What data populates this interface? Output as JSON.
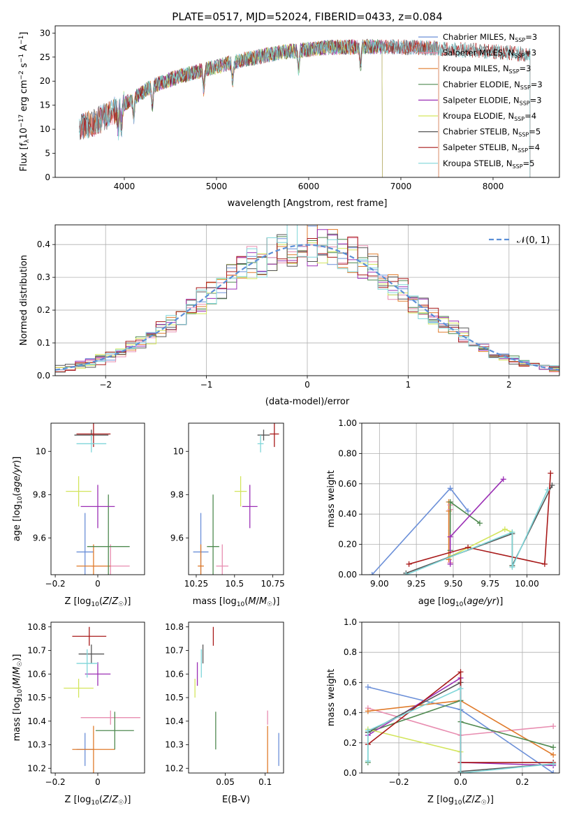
{
  "figure": {
    "title": "PLATE=0517, MJD=52024, FIBERID=0433, z=0.084"
  },
  "colors": {
    "Chabrier MILES": "#6b8fd8",
    "Salpeter MILES": "#e88db0",
    "Kroupa MILES": "#e07b2b",
    "Chabrier ELODIE": "#4f8a50",
    "Salpeter ELODIE": "#9b2fb5",
    "Kroupa ELODIE": "#d3e55c",
    "Chabrier STELIB": "#555555",
    "Salpeter STELIB": "#a81a1a",
    "Kroupa STELIB": "#7fd6d9"
  },
  "chart_data": [
    {
      "id": "spectrum",
      "type": "line",
      "title": "PLATE=0517, MJD=52024, FIBERID=0433, z=0.084",
      "xlabel": "wavelength [Angstrom, rest frame]",
      "ylabel": "Flux [f_λ 10^-17 erg cm^-2 s^-1 A^-1]",
      "xlim": [
        3250,
        8720
      ],
      "ylim": [
        0,
        31.5
      ],
      "xticks": [
        4000,
        5000,
        6000,
        7000,
        8000
      ],
      "yticks": [
        0,
        5,
        10,
        15,
        20,
        25,
        30
      ],
      "grid": false,
      "legend_position": "right",
      "data_range": [
        3510,
        8400
      ],
      "data_continuum": [
        [
          3510,
          10.5
        ],
        [
          3700,
          11.5
        ],
        [
          3900,
          14
        ],
        [
          4100,
          16.5
        ],
        [
          4300,
          19
        ],
        [
          4600,
          21
        ],
        [
          5000,
          23
        ],
        [
          5300,
          24.5
        ],
        [
          5700,
          26
        ],
        [
          6200,
          27
        ],
        [
          6700,
          27.2
        ],
        [
          7200,
          27
        ],
        [
          7700,
          26.5
        ],
        [
          8100,
          26
        ],
        [
          8400,
          25.5
        ]
      ],
      "legend": [
        {
          "label": "Chabrier MILES, N_SSP=3",
          "base": "Chabrier MILES, N",
          "sub": "SSP",
          "tail": "=3"
        },
        {
          "label": "Salpeter MILES, N_SSP=3",
          "base": "Salpeter MILES, N",
          "sub": "SSP",
          "tail": "=3"
        },
        {
          "label": "Kroupa MILES, N_SSP=3",
          "base": "Kroupa MILES, N",
          "sub": "SSP",
          "tail": "=3"
        },
        {
          "label": "Chabrier ELODIE, N_SSP=3",
          "base": "Chabrier ELODIE, N",
          "sub": "SSP",
          "tail": "=3"
        },
        {
          "label": "Salpeter ELODIE, N_SSP=3",
          "base": "Salpeter ELODIE, N",
          "sub": "SSP",
          "tail": "=3"
        },
        {
          "label": "Kroupa ELODIE, N_SSP=4",
          "base": "Kroupa ELODIE, N",
          "sub": "SSP",
          "tail": "=4"
        },
        {
          "label": "Chabrier STELIB, N_SSP=5",
          "base": "Chabrier STELIB, N",
          "sub": "SSP",
          "tail": "=5"
        },
        {
          "label": "Salpeter STELIB, N_SSP=4",
          "base": "Salpeter STELIB, N",
          "sub": "SSP",
          "tail": "=4"
        },
        {
          "label": "Kroupa STELIB, N_SSP=5",
          "base": "Kroupa STELIB, N",
          "sub": "SSP",
          "tail": "=5"
        }
      ],
      "model_ranges": {
        "Chabrier MILES": [
          3540,
          7410
        ],
        "Salpeter MILES": [
          3540,
          7410
        ],
        "Kroupa MILES": [
          3540,
          7410
        ],
        "Chabrier ELODIE": [
          3910,
          6800
        ],
        "Salpeter ELODIE": [
          3910,
          6800
        ],
        "Kroupa ELODIE": [
          3910,
          6800
        ],
        "Chabrier STELIB": [
          3510,
          8400
        ],
        "Salpeter STELIB": [
          3510,
          8400
        ],
        "Kroupa STELIB": [
          3510,
          8400
        ]
      }
    },
    {
      "id": "residuals",
      "type": "line",
      "xlabel": "(data-model)/error",
      "ylabel": "Normed distribution",
      "xlim": [
        -2.5,
        2.5
      ],
      "ylim": [
        0,
        0.46
      ],
      "xticks": [
        -2,
        -1,
        0,
        1,
        2
      ],
      "yticks": [
        0.0,
        0.1,
        0.2,
        0.3,
        0.4
      ],
      "grid": true,
      "legend_position": "top-right",
      "legend": [
        {
          "label": "𝒩(0, 1)",
          "color": "#5b8fd6",
          "style": "dashed"
        }
      ],
      "bin_edges": [
        -2.5,
        2.5,
        50
      ],
      "curve": "normal pdf, mean 0, sd 1"
    },
    {
      "id": "age_vs_Z",
      "type": "scatter",
      "xlabel": "Z [log10(Z/Z☉)]",
      "ylabel": "age [log10(age/yr)]",
      "xlim": [
        -0.22,
        0.22
      ],
      "ylim": [
        9.43,
        10.13
      ],
      "xticks": [
        -0.2,
        0.0
      ],
      "yticks": [
        9.6,
        9.8,
        10.0
      ],
      "grid": false,
      "points": [
        {
          "model": "Chabrier MILES",
          "x": -0.06,
          "xerr": 0.04,
          "y": 9.535,
          "yerr": 0.18
        },
        {
          "model": "Salpeter MILES",
          "x": 0.06,
          "xerr": 0.09,
          "y": 9.47,
          "yerr": 0.1
        },
        {
          "model": "Kroupa MILES",
          "x": -0.02,
          "xerr": 0.08,
          "y": 9.47,
          "yerr": 0.1
        },
        {
          "model": "Chabrier ELODIE",
          "x": 0.05,
          "xerr": 0.1,
          "y": 9.56,
          "yerr": 0.24
        },
        {
          "model": "Salpeter ELODIE",
          "x": 0.0,
          "xerr": 0.08,
          "y": 9.745,
          "yerr": 0.1
        },
        {
          "model": "Kroupa ELODIE",
          "x": -0.09,
          "xerr": 0.06,
          "y": 9.815,
          "yerr": 0.07
        },
        {
          "model": "Chabrier STELIB",
          "x": -0.03,
          "xerr": 0.08,
          "y": 10.075,
          "yerr": 0.025
        },
        {
          "model": "Salpeter STELIB",
          "x": -0.02,
          "xerr": 0.08,
          "y": 10.08,
          "yerr": 0.06
        },
        {
          "model": "Kroupa STELIB",
          "x": -0.03,
          "xerr": 0.07,
          "y": 10.035,
          "yerr": 0.04
        }
      ]
    },
    {
      "id": "age_vs_mass",
      "type": "scatter",
      "xlabel": "mass [log10(M/M☉)]",
      "ylabel": "",
      "xlim": [
        10.2,
        10.82
      ],
      "ylim": [
        9.43,
        10.13
      ],
      "xticks": [
        10.25,
        10.5,
        10.75
      ],
      "yticks": [
        9.6,
        9.8,
        10.0
      ],
      "grid": false,
      "points": [
        {
          "model": "Chabrier MILES",
          "x": 10.28,
          "xerr": 0.05,
          "y": 9.535,
          "yerr": 0.18
        },
        {
          "model": "Salpeter MILES",
          "x": 10.42,
          "xerr": 0.04,
          "y": 9.47,
          "yerr": 0.1
        },
        {
          "model": "Kroupa MILES",
          "x": 10.28,
          "xerr": 0.02,
          "y": 9.47,
          "yerr": 0.1
        },
        {
          "model": "Chabrier ELODIE",
          "x": 10.36,
          "xerr": 0.04,
          "y": 9.56,
          "yerr": 0.24
        },
        {
          "model": "Salpeter ELODIE",
          "x": 10.6,
          "xerr": 0.05,
          "y": 9.745,
          "yerr": 0.1
        },
        {
          "model": "Kroupa ELODIE",
          "x": 10.54,
          "xerr": 0.04,
          "y": 9.815,
          "yerr": 0.07
        },
        {
          "model": "Chabrier STELIB",
          "x": 10.69,
          "xerr": 0.04,
          "y": 10.075,
          "yerr": 0.025
        },
        {
          "model": "Salpeter STELIB",
          "x": 10.76,
          "xerr": 0.03,
          "y": 10.08,
          "yerr": 0.06
        },
        {
          "model": "Kroupa STELIB",
          "x": 10.67,
          "xerr": 0.02,
          "y": 10.035,
          "yerr": 0.04
        }
      ]
    },
    {
      "id": "weight_vs_age",
      "type": "line",
      "xlabel": "age [log10(age/yr)]",
      "ylabel": "mass weight",
      "xlim": [
        8.88,
        10.22
      ],
      "ylim": [
        0,
        1.0
      ],
      "xticks": [
        9.0,
        9.25,
        9.5,
        9.75,
        10.0
      ],
      "yticks": [
        0.0,
        0.2,
        0.4,
        0.6,
        0.8,
        1.0
      ],
      "grid": true,
      "series": [
        {
          "model": "Chabrier MILES",
          "x": [
            8.95,
            9.48,
            9.6
          ],
          "y": [
            0.0,
            0.57,
            0.42
          ]
        },
        {
          "model": "Kroupa MILES",
          "x": [
            9.47,
            9.47,
            9.47
          ],
          "y": [
            0.1,
            0.48,
            0.42
          ]
        },
        {
          "model": "Salpeter MILES",
          "x": [
            9.48,
            9.48,
            9.48
          ],
          "y": [
            0.08,
            0.46,
            0.43
          ]
        },
        {
          "model": "Chabrier ELODIE",
          "x": [
            9.48,
            9.48,
            9.68
          ],
          "y": [
            0.16,
            0.48,
            0.34
          ]
        },
        {
          "model": "Salpeter ELODIE",
          "x": [
            9.48,
            9.48,
            9.84
          ],
          "y": [
            0.07,
            0.25,
            0.63
          ]
        },
        {
          "model": "Kroupa ELODIE",
          "x": [
            9.48,
            9.85,
            9.9,
            9.9
          ],
          "y": [
            0.12,
            0.3,
            0.28,
            0.06
          ]
        },
        {
          "model": "Chabrier STELIB",
          "x": [
            9.18,
            9.9,
            9.9,
            10.17
          ],
          "y": [
            0.01,
            0.27,
            0.06,
            0.59
          ]
        },
        {
          "model": "Salpeter STELIB",
          "x": [
            9.2,
            9.6,
            10.12,
            10.16
          ],
          "y": [
            0.07,
            0.18,
            0.07,
            0.67
          ]
        },
        {
          "model": "Kroupa STELIB",
          "x": [
            9.18,
            9.9,
            9.9,
            10.14
          ],
          "y": [
            0.0,
            0.28,
            0.05,
            0.56
          ]
        }
      ]
    },
    {
      "id": "mass_vs_Z",
      "type": "scatter",
      "xlabel": "Z [log10(Z/Z☉)]",
      "ylabel": "mass [log10(M/M☉)]",
      "xlim": [
        -0.22,
        0.22
      ],
      "ylim": [
        10.18,
        10.82
      ],
      "xticks": [
        -0.2,
        0.0
      ],
      "yticks": [
        10.2,
        10.3,
        10.4,
        10.5,
        10.6,
        10.7,
        10.8
      ],
      "grid": false,
      "points": [
        {
          "model": "Chabrier MILES",
          "x": -0.06,
          "xerr": 0.04,
          "y": 10.28,
          "yerr": 0.07
        },
        {
          "model": "Salpeter MILES",
          "x": 0.06,
          "xerr": 0.14,
          "y": 10.415,
          "yerr": 0.03
        },
        {
          "model": "Kroupa MILES",
          "x": -0.02,
          "xerr": 0.1,
          "y": 10.28,
          "yerr": 0.1
        },
        {
          "model": "Chabrier ELODIE",
          "x": 0.08,
          "xerr": 0.09,
          "y": 10.36,
          "yerr": 0.08
        },
        {
          "model": "Salpeter ELODIE",
          "x": 0.0,
          "xerr": 0.06,
          "y": 10.6,
          "yerr": 0.05
        },
        {
          "model": "Kroupa ELODIE",
          "x": -0.09,
          "xerr": 0.07,
          "y": 10.54,
          "yerr": 0.04
        },
        {
          "model": "Chabrier STELIB",
          "x": -0.03,
          "xerr": 0.06,
          "y": 10.685,
          "yerr": 0.04
        },
        {
          "model": "Salpeter STELIB",
          "x": -0.04,
          "xerr": 0.08,
          "y": 10.76,
          "yerr": 0.04
        },
        {
          "model": "Kroupa STELIB",
          "x": -0.05,
          "xerr": 0.05,
          "y": 10.645,
          "yerr": 0.06
        }
      ]
    },
    {
      "id": "mass_vs_ebv",
      "type": "scatter",
      "xlabel": "E(B-V)",
      "ylabel": "",
      "xlim": [
        0.004,
        0.123
      ],
      "ylim": [
        10.18,
        10.82
      ],
      "xticks": [
        0.05,
        0.1
      ],
      "yticks": [
        10.2,
        10.3,
        10.4,
        10.5,
        10.6,
        10.7,
        10.8
      ],
      "grid": false,
      "points": [
        {
          "model": "Chabrier MILES",
          "x": 0.117,
          "y": 10.28,
          "yerr": 0.07
        },
        {
          "model": "Salpeter MILES",
          "x": 0.103,
          "y": 10.415,
          "yerr": 0.03
        },
        {
          "model": "Kroupa MILES",
          "x": 0.103,
          "y": 10.28,
          "yerr": 0.1
        },
        {
          "model": "Chabrier ELODIE",
          "x": 0.038,
          "y": 10.36,
          "yerr": 0.08
        },
        {
          "model": "Salpeter ELODIE",
          "x": 0.015,
          "y": 10.6,
          "yerr": 0.05
        },
        {
          "model": "Kroupa ELODIE",
          "x": 0.012,
          "y": 10.54,
          "yerr": 0.04
        },
        {
          "model": "Chabrier STELIB",
          "x": 0.022,
          "y": 10.685,
          "yerr": 0.04
        },
        {
          "model": "Salpeter STELIB",
          "x": 0.035,
          "y": 10.76,
          "yerr": 0.04
        },
        {
          "model": "Kroupa STELIB",
          "x": 0.02,
          "y": 10.645,
          "yerr": 0.06
        }
      ]
    },
    {
      "id": "weight_vs_Z",
      "type": "line",
      "xlabel": "Z [log10(Z/Z☉)]",
      "ylabel": "mass weight",
      "xlim": [
        -0.32,
        0.32
      ],
      "ylim": [
        0,
        1.0
      ],
      "xticks": [
        -0.2,
        0.0,
        0.2
      ],
      "yticks": [
        0.0,
        0.2,
        0.4,
        0.6,
        0.8,
        1.0
      ],
      "grid": true,
      "series": [
        {
          "model": "Chabrier MILES",
          "x": [
            -0.3,
            0.0,
            0.3
          ],
          "y": [
            0.57,
            0.42,
            0.0
          ]
        },
        {
          "model": "Salpeter MILES",
          "x": [
            -0.3,
            0.0,
            0.3
          ],
          "y": [
            0.43,
            0.25,
            0.31
          ]
        },
        {
          "model": "Kroupa MILES",
          "x": [
            -0.3,
            0.0,
            0.3
          ],
          "y": [
            0.41,
            0.48,
            0.12
          ]
        },
        {
          "model": "Chabrier ELODIE",
          "x": [
            -0.3,
            -0.3,
            0.0,
            0.0,
            0.3
          ],
          "y": [
            0.07,
            0.27,
            0.48,
            0.34,
            0.17
          ]
        },
        {
          "model": "Salpeter ELODIE",
          "x": [
            -0.3,
            0.0,
            0.0,
            0.3
          ],
          "y": [
            0.25,
            0.63,
            0.07,
            0.05
          ]
        },
        {
          "model": "Kroupa ELODIE",
          "x": [
            -0.3,
            0.0
          ],
          "y": [
            0.29,
            0.14
          ]
        },
        {
          "model": "Chabrier STELIB",
          "x": [
            -0.3,
            0.0,
            0.0,
            0.3
          ],
          "y": [
            0.27,
            0.6,
            0.01,
            0.06
          ]
        },
        {
          "model": "Salpeter STELIB",
          "x": [
            -0.3,
            0.0,
            0.0,
            0.3
          ],
          "y": [
            0.19,
            0.67,
            0.07,
            0.07
          ]
        },
        {
          "model": "Kroupa STELIB",
          "x": [
            -0.3,
            -0.3,
            0.0,
            0.0,
            0.3
          ],
          "y": [
            0.08,
            0.28,
            0.56,
            0.0,
            0.06
          ]
        }
      ]
    }
  ]
}
